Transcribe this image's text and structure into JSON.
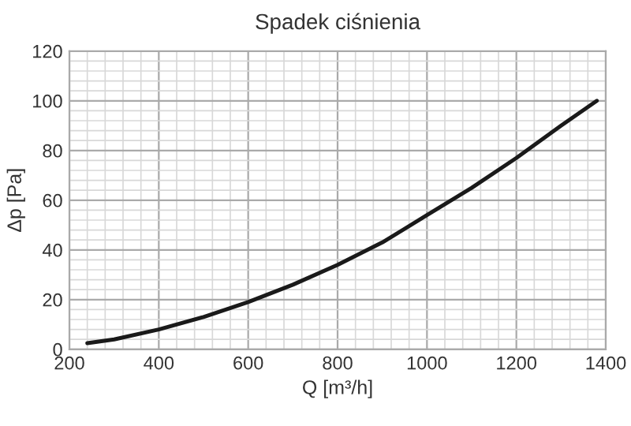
{
  "chart_data": {
    "type": "line",
    "title": "Spadek ciśnienia",
    "xlabel": "Q [m³/h]",
    "ylabel": "Δp [Pa]",
    "x": [
      240,
      300,
      400,
      500,
      600,
      700,
      800,
      900,
      1000,
      1100,
      1200,
      1300,
      1380
    ],
    "series": [
      {
        "color": "#1a1a1a",
        "values": [
          2.5,
          4,
          8,
          13,
          19,
          26,
          34,
          43,
          54,
          65,
          77,
          90,
          100
        ]
      }
    ],
    "xlim": [
      200,
      1400
    ],
    "xticks": [
      200,
      400,
      600,
      800,
      1000,
      1200,
      1400
    ],
    "ylim": [
      0,
      120
    ],
    "yticks": [
      0,
      20,
      40,
      60,
      80,
      100,
      120
    ],
    "grid": true,
    "line_style": "solid",
    "marker": "none"
  }
}
